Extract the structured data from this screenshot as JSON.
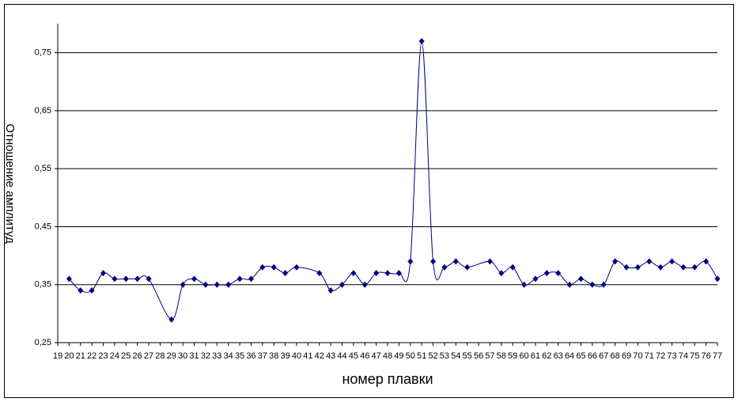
{
  "chart_data": {
    "type": "line",
    "x_label": "номер плавки",
    "y_label": "Отношение амплитуд",
    "x": [
      20,
      21,
      22,
      23,
      24,
      25,
      26,
      27,
      29,
      30,
      31,
      32,
      33,
      34,
      35,
      36,
      37,
      38,
      39,
      40,
      42,
      43,
      44,
      45,
      46,
      47,
      48,
      49,
      50,
      51,
      52,
      53,
      54,
      55,
      57,
      58,
      59,
      60,
      61,
      62,
      63,
      64,
      65,
      66,
      67,
      68,
      69,
      70,
      71,
      72,
      73,
      74,
      75,
      76,
      77
    ],
    "series": [
      {
        "color": "#000080",
        "values": [
          0.36,
          0.34,
          0.34,
          0.37,
          0.36,
          0.36,
          0.36,
          0.36,
          0.29,
          0.35,
          0.36,
          0.35,
          0.35,
          0.35,
          0.36,
          0.36,
          0.38,
          0.38,
          0.37,
          0.38,
          0.37,
          0.34,
          0.35,
          0.37,
          0.35,
          0.37,
          0.37,
          0.37,
          0.39,
          0.77,
          0.39,
          0.38,
          0.39,
          0.38,
          0.39,
          0.37,
          0.38,
          0.35,
          0.36,
          0.37,
          0.37,
          0.35,
          0.36,
          0.35,
          0.35,
          0.39,
          0.38,
          0.38,
          0.39,
          0.38,
          0.39,
          0.38,
          0.38,
          0.39,
          0.36
        ]
      }
    ],
    "xlim": [
      19,
      77
    ],
    "xticks": [
      19,
      20,
      21,
      22,
      23,
      24,
      25,
      26,
      27,
      28,
      29,
      30,
      31,
      32,
      33,
      34,
      35,
      36,
      37,
      38,
      39,
      40,
      41,
      42,
      43,
      44,
      45,
      46,
      47,
      48,
      49,
      50,
      51,
      52,
      53,
      54,
      55,
      56,
      57,
      58,
      59,
      60,
      61,
      62,
      63,
      64,
      65,
      66,
      67,
      68,
      69,
      70,
      71,
      72,
      73,
      74,
      75,
      76,
      77
    ],
    "ylim": [
      0.25,
      0.8
    ],
    "yticks": [
      {
        "value": 0.25,
        "label": "0,25"
      },
      {
        "value": 0.35,
        "label": "0,35"
      },
      {
        "value": 0.45,
        "label": "0,45"
      },
      {
        "value": 0.55,
        "label": "0,55"
      },
      {
        "value": 0.65,
        "label": "0,65"
      },
      {
        "value": 0.75,
        "label": "0,75"
      }
    ],
    "grid": true
  }
}
